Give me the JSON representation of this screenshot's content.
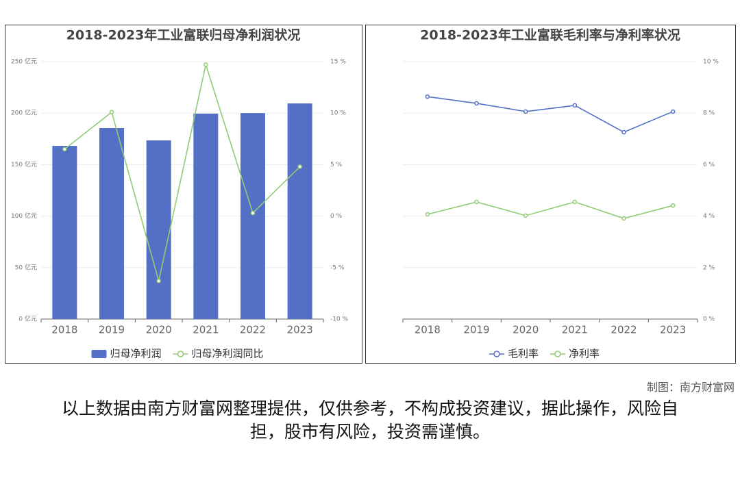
{
  "chart_data": [
    {
      "type": "bar",
      "title": "2018-2023年工业富联归母净利润状况",
      "categories": [
        "2018",
        "2019",
        "2020",
        "2021",
        "2022",
        "2023"
      ],
      "series": [
        {
          "name": "归母净利润",
          "type": "bar",
          "color": "#5470c6",
          "values": [
            168.2,
            185.5,
            173.5,
            199.5,
            200,
            209.4
          ]
        },
        {
          "name": "归母净利润同比",
          "type": "line",
          "axis": "y2",
          "color": "#91cc75",
          "values": [
            6.5,
            10.1,
            -6.3,
            14.7,
            0.3,
            4.8
          ]
        }
      ],
      "ylim": [
        0,
        250
      ],
      "yticks": [
        {
          "value": 0,
          "label": "0 亿元"
        },
        {
          "value": 50,
          "label": "50 亿元"
        },
        {
          "value": 100,
          "label": "100 亿元"
        },
        {
          "value": 150,
          "label": "150 亿元"
        },
        {
          "value": 200,
          "label": "200 亿元"
        },
        {
          "value": 250,
          "label": "250 亿元"
        }
      ],
      "y2lim": [
        -10,
        15
      ],
      "y2ticks": [
        {
          "value": -10,
          "label": "-10 %"
        },
        {
          "value": -5,
          "label": "-5 %"
        },
        {
          "value": 0,
          "label": "0 %"
        },
        {
          "value": 5,
          "label": "5 %"
        },
        {
          "value": 10,
          "label": "10 %"
        },
        {
          "value": 15,
          "label": "15 %"
        }
      ],
      "grid": true,
      "legend": "bottom"
    },
    {
      "type": "line",
      "title": "2018-2023年工业富联毛利率与净利率状况",
      "categories": [
        "2018",
        "2019",
        "2020",
        "2021",
        "2022",
        "2023"
      ],
      "series": [
        {
          "name": "毛利率",
          "type": "line",
          "color": "#5470c6",
          "values": [
            8.64,
            8.38,
            8.06,
            8.3,
            7.26,
            8.06
          ]
        },
        {
          "name": "净利率",
          "type": "line",
          "color": "#91cc75",
          "values": [
            4.07,
            4.55,
            4.02,
            4.55,
            3.91,
            4.41
          ]
        }
      ],
      "ylim": [
        0,
        10
      ],
      "yticks": [
        {
          "value": 0,
          "label": "0 %"
        },
        {
          "value": 2,
          "label": "2 %"
        },
        {
          "value": 4,
          "label": "4 %"
        },
        {
          "value": 6,
          "label": "6 %"
        },
        {
          "value": 8,
          "label": "8 %"
        },
        {
          "value": 10,
          "label": "10 %"
        }
      ],
      "y_axis_side": "right",
      "grid": true,
      "legend": "bottom"
    }
  ],
  "credit": "制图：南方财富网",
  "disclaimer": "以上数据由南方财富网整理提供，仅供参考，不构成投资建议，据此操作，风险自担，股市有风险，投资需谨慎。"
}
